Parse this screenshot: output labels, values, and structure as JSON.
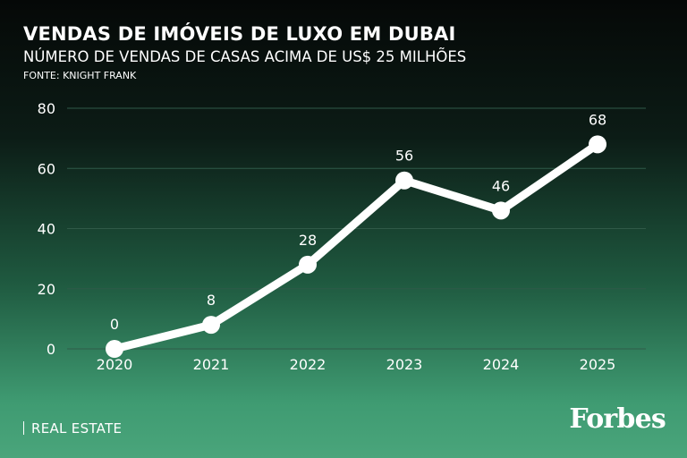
{
  "header": {
    "title": "VENDAS DE IMÓVEIS DE LUXO EM DUBAI",
    "subtitle": "NÚMERO DE VENDAS DE CASAS ACIMA DE US$ 25 MILHÕES",
    "source": "FONTE: KNIGHT FRANK"
  },
  "footer": {
    "section": "REAL ESTATE",
    "brand": "Forbes"
  },
  "colors": {
    "line": "#ffffff",
    "grid": "#2f5a48"
  },
  "chart_data": {
    "type": "line",
    "title": "VENDAS DE IMÓVEIS DE LUXO EM DUBAI",
    "subtitle": "NÚMERO DE VENDAS DE CASAS ACIMA DE US$ 25 MILHÕES",
    "xlabel": "",
    "ylabel": "",
    "categories": [
      "2020",
      "2021",
      "2022",
      "2023",
      "2024",
      "2025"
    ],
    "values": [
      0,
      8,
      28,
      56,
      46,
      68
    ],
    "data_labels": [
      "0",
      "8",
      "28",
      "56",
      "46",
      "68"
    ],
    "ylim": [
      0,
      80
    ],
    "yticks": [
      0,
      20,
      40,
      60,
      80
    ],
    "grid": true,
    "legend": "none"
  }
}
